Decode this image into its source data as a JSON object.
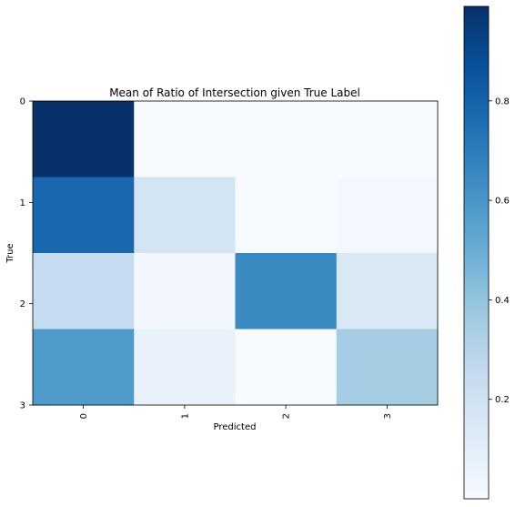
{
  "chart_data": {
    "type": "heatmap",
    "title": "Mean of Ratio of Intersection given True Label",
    "xlabel": "Predicted",
    "ylabel": "True",
    "x_ticks": [
      "0",
      "1",
      "2",
      "3"
    ],
    "y_ticks": [
      "0",
      "1",
      "2",
      "3"
    ],
    "values": [
      [
        0.99,
        0.0,
        0.0,
        0.0
      ],
      [
        0.78,
        0.18,
        0.0,
        0.02
      ],
      [
        0.25,
        0.03,
        0.65,
        0.15
      ],
      [
        0.58,
        0.07,
        0.0,
        0.35
      ]
    ],
    "colormap": "Blues",
    "colorbar": {
      "range": [
        0.0,
        0.99
      ],
      "ticks": [
        0.2,
        0.4,
        0.6,
        0.8
      ],
      "tick_labels": [
        "0.2",
        "0.4",
        "0.6",
        "0.8"
      ]
    },
    "grid": false
  }
}
